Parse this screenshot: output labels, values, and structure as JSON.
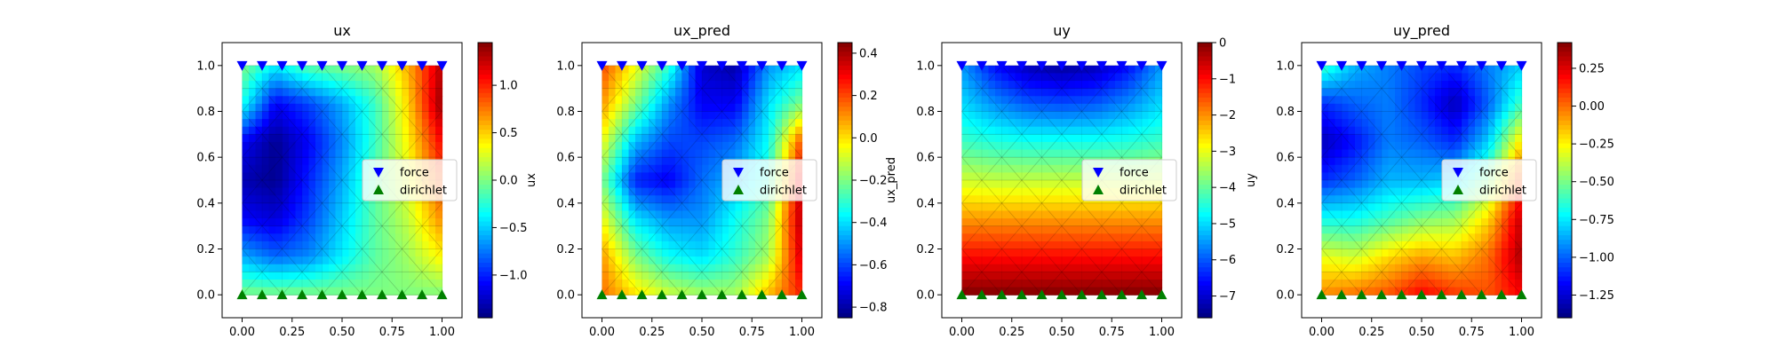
{
  "chart_data": [
    {
      "type": "heatmap",
      "title": "ux",
      "colorbar_label": "",
      "value_range": [
        -1.45,
        1.45
      ],
      "colorbar_ticks": [
        -1.0,
        -0.5,
        0.0,
        0.5,
        1.0
      ],
      "colorbar_tick_labels": [
        "−1.0",
        "−0.5",
        "0.0",
        "0.5",
        "1.0"
      ],
      "field": [
        [
          0.0,
          -0.4,
          -0.1,
          0.0,
          0.1,
          0.6,
          1.3
        ],
        [
          -0.3,
          -1.1,
          -0.9,
          -0.6,
          -0.2,
          0.5,
          1.4
        ],
        [
          -1.1,
          -1.4,
          -1.1,
          -0.7,
          -0.2,
          0.4,
          1.1
        ],
        [
          -1.3,
          -1.4,
          -1.0,
          -0.6,
          -0.1,
          0.3,
          0.9
        ],
        [
          -1.1,
          -1.2,
          -0.9,
          -0.5,
          -0.1,
          0.2,
          0.7
        ],
        [
          -0.6,
          -0.8,
          -0.7,
          -0.4,
          -0.1,
          0.1,
          0.4
        ],
        [
          0.0,
          0.0,
          0.0,
          0.0,
          0.0,
          0.0,
          0.0
        ]
      ]
    },
    {
      "type": "heatmap",
      "title": "ux_pred",
      "colorbar_label": "ux_pred",
      "left_label": "ux",
      "value_range": [
        -0.85,
        0.45
      ],
      "colorbar_ticks": [
        -0.8,
        -0.6,
        -0.4,
        -0.2,
        0.0,
        0.2,
        0.4
      ],
      "colorbar_tick_labels": [
        "−0.8",
        "−0.6",
        "−0.4",
        "−0.2",
        "0.0",
        "0.2",
        "0.4"
      ],
      "field": [
        [
          0.2,
          -0.05,
          -0.3,
          -0.75,
          -0.8,
          -0.5,
          -0.4
        ],
        [
          0.1,
          -0.2,
          -0.5,
          -0.7,
          -0.7,
          -0.4,
          -0.2
        ],
        [
          -0.05,
          -0.45,
          -0.6,
          -0.6,
          -0.55,
          -0.35,
          0.2
        ],
        [
          -0.2,
          -0.65,
          -0.7,
          -0.55,
          -0.45,
          -0.3,
          0.35
        ],
        [
          -0.05,
          -0.4,
          -0.5,
          -0.5,
          -0.35,
          -0.2,
          0.4
        ],
        [
          0.1,
          -0.2,
          -0.35,
          -0.4,
          -0.3,
          -0.15,
          0.35
        ],
        [
          0.15,
          0.0,
          -0.1,
          -0.15,
          -0.15,
          0.05,
          0.25
        ]
      ]
    },
    {
      "type": "heatmap",
      "title": "uy",
      "colorbar_label": "uy",
      "left_label": "ux_pred",
      "value_range": [
        -7.6,
        0.0
      ],
      "colorbar_ticks": [
        -7,
        -6,
        -5,
        -4,
        -3,
        -2,
        -1,
        0
      ],
      "colorbar_tick_labels": [
        "−7",
        "−6",
        "−5",
        "−4",
        "−3",
        "−2",
        "−1",
        "0"
      ],
      "field": [
        [
          -5.5,
          -6.6,
          -7.2,
          -7.4,
          -7.2,
          -6.6,
          -5.5
        ],
        [
          -5.0,
          -5.6,
          -6.0,
          -6.1,
          -6.0,
          -5.6,
          -5.0
        ],
        [
          -4.3,
          -4.5,
          -4.6,
          -4.6,
          -4.6,
          -4.5,
          -4.3
        ],
        [
          -3.2,
          -3.3,
          -3.3,
          -3.3,
          -3.3,
          -3.3,
          -3.2
        ],
        [
          -2.1,
          -2.1,
          -2.1,
          -2.1,
          -2.1,
          -2.1,
          -2.1
        ],
        [
          -1.0,
          -1.0,
          -1.0,
          -1.0,
          -1.0,
          -1.0,
          -1.0
        ],
        [
          0.0,
          0.0,
          0.0,
          0.0,
          0.0,
          0.0,
          0.0
        ]
      ]
    },
    {
      "type": "heatmap",
      "title": "uy_pred",
      "colorbar_label": "uy_pred",
      "left_label": "uy",
      "value_range": [
        -1.4,
        0.42
      ],
      "colorbar_ticks": [
        -1.25,
        -1.0,
        -0.75,
        -0.5,
        -0.25,
        0.0,
        0.25
      ],
      "colorbar_tick_labels": [
        "−1.25",
        "−1.00",
        "−0.75",
        "−0.50",
        "−0.25",
        "0.00",
        "0.25"
      ],
      "field": [
        [
          -0.6,
          -0.85,
          -0.95,
          -1.05,
          -1.1,
          -0.95,
          -0.8
        ],
        [
          -1.1,
          -1.0,
          -0.95,
          -1.1,
          -1.3,
          -1.0,
          -0.6
        ],
        [
          -1.3,
          -1.15,
          -0.95,
          -1.0,
          -1.1,
          -0.8,
          -0.2
        ],
        [
          -1.1,
          -1.0,
          -0.85,
          -0.85,
          -0.8,
          -0.5,
          0.1
        ],
        [
          -0.7,
          -0.7,
          -0.6,
          -0.5,
          -0.45,
          -0.2,
          0.3
        ],
        [
          -0.3,
          -0.35,
          -0.2,
          -0.1,
          -0.15,
          0.0,
          0.35
        ],
        [
          -0.05,
          0.0,
          0.05,
          0.2,
          0.1,
          0.05,
          0.2
        ]
      ]
    }
  ],
  "axes": {
    "xlim": [
      -0.1,
      1.1
    ],
    "ylim": [
      -0.1,
      1.1
    ],
    "xticks": [
      0.0,
      0.25,
      0.5,
      0.75,
      1.0
    ],
    "xtick_labels": [
      "0.00",
      "0.25",
      "0.50",
      "0.75",
      "1.00"
    ],
    "yticks": [
      0.0,
      0.2,
      0.4,
      0.6,
      0.8,
      1.0
    ],
    "ytick_labels": [
      "0.0",
      "0.2",
      "0.4",
      "0.6",
      "0.8",
      "1.0"
    ]
  },
  "markers": {
    "force": {
      "label": "force",
      "color": "#0000ff",
      "y": 1.0,
      "x": [
        0.0,
        0.1,
        0.2,
        0.3,
        0.4,
        0.5,
        0.6,
        0.7,
        0.8,
        0.9,
        1.0
      ]
    },
    "dirichlet": {
      "label": "dirichlet",
      "color": "#008000",
      "y": 0.0,
      "x": [
        0.0,
        0.1,
        0.2,
        0.3,
        0.4,
        0.5,
        0.6,
        0.7,
        0.8,
        0.9,
        1.0
      ]
    }
  },
  "legend_loc": "center right",
  "colormap": "jet"
}
